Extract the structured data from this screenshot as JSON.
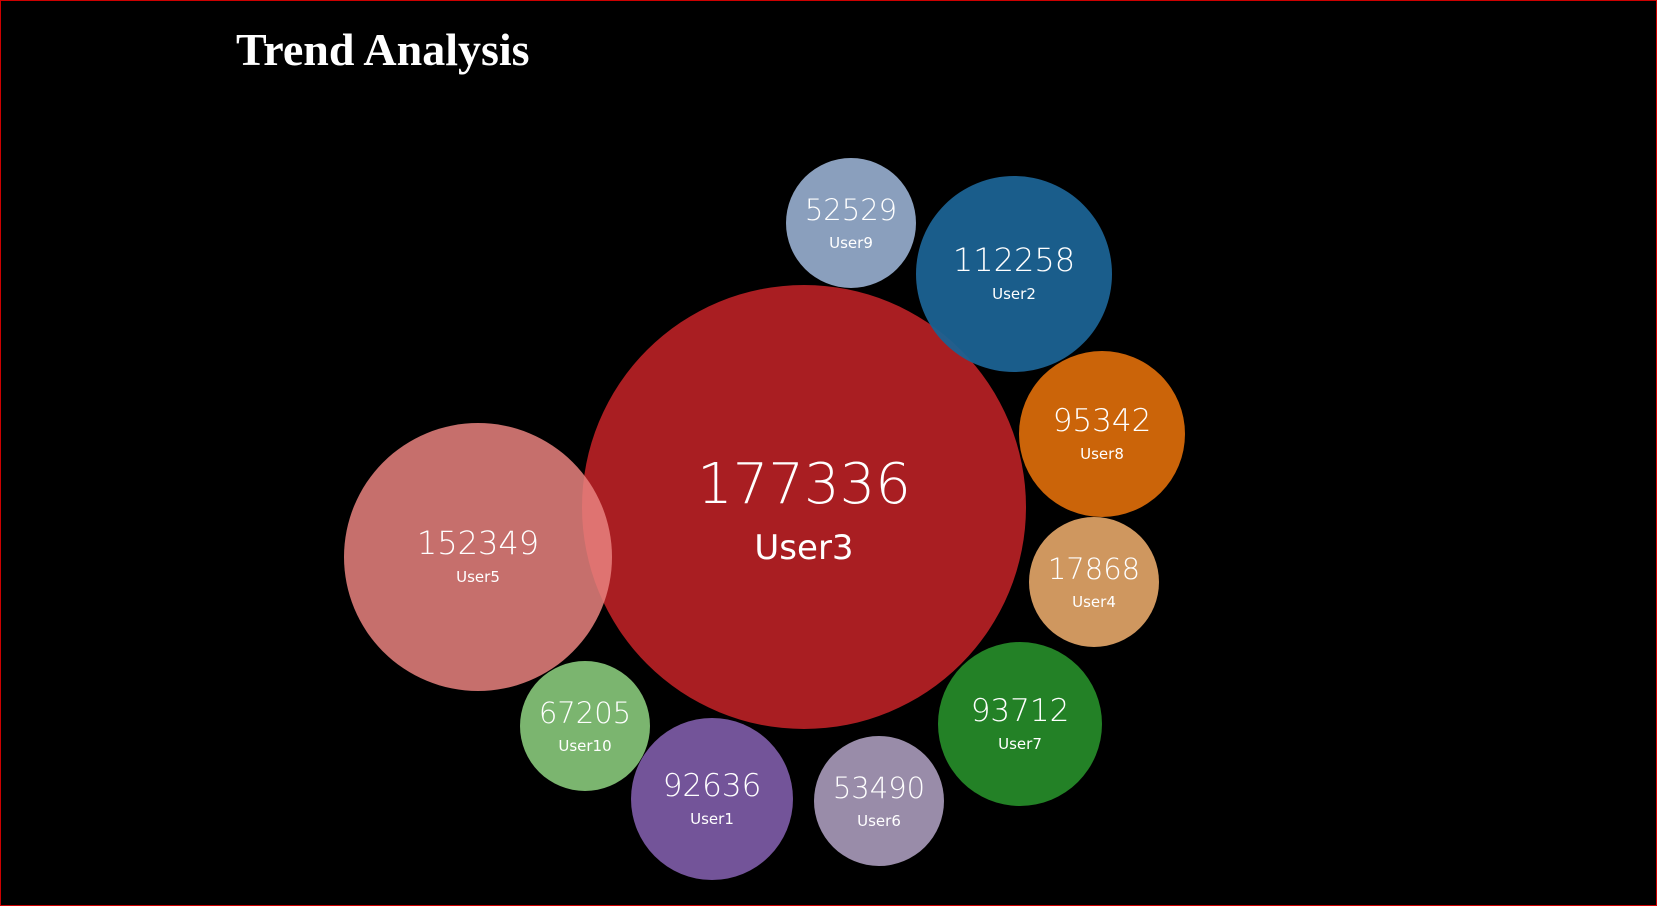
{
  "title": "Trend Analysis",
  "chart_data": {
    "type": "bubble",
    "title": "Trend Analysis",
    "xlabel": "",
    "ylabel": "",
    "grid": false,
    "legend": "none",
    "bubbles": [
      {
        "name": "User3",
        "value": 177336,
        "color": "#a91e22"
      },
      {
        "name": "User5",
        "value": 152349,
        "color": "#e9837f"
      },
      {
        "name": "User2",
        "value": 112258,
        "color": "#1b6292"
      },
      {
        "name": "User8",
        "value": 95342,
        "color": "#cb6409"
      },
      {
        "name": "User7",
        "value": 93712,
        "color": "#238126"
      },
      {
        "name": "User1",
        "value": 92636,
        "color": "#735499"
      },
      {
        "name": "User10",
        "value": 67205,
        "color": "#7bb56f"
      },
      {
        "name": "User6",
        "value": 53490,
        "color": "#998ca9"
      },
      {
        "name": "User9",
        "value": 52529,
        "color": "#8a9fbd"
      },
      {
        "name": "User4",
        "value": 17868,
        "color": "#cf975f"
      }
    ]
  }
}
